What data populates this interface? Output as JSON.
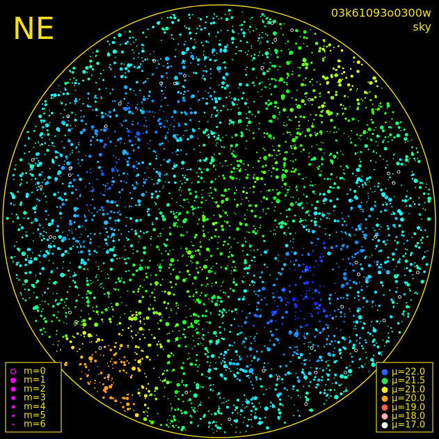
{
  "title": "NE",
  "image_id": "03k61093o0300w",
  "band": "sky",
  "magnitude_legend": {
    "color": "#ff00ff",
    "entries": [
      "m=0",
      "m=1",
      "m=2",
      "m=3",
      "m=4",
      "m=5",
      "m=6"
    ]
  },
  "brightness_legend": {
    "entries": [
      {
        "label": "μ=22.0",
        "color": "#2a60ff"
      },
      {
        "label": "μ=21.5",
        "color": "#30e060"
      },
      {
        "label": "μ=21.0",
        "color": "#f0f020"
      },
      {
        "label": "μ=20.0",
        "color": "#ffa020"
      },
      {
        "label": "μ=19.0",
        "color": "#ff6040"
      },
      {
        "label": "μ=18.0",
        "color": "#ffb0b0"
      },
      {
        "label": "μ=17.0",
        "color": "#ffffff"
      }
    ]
  }
}
